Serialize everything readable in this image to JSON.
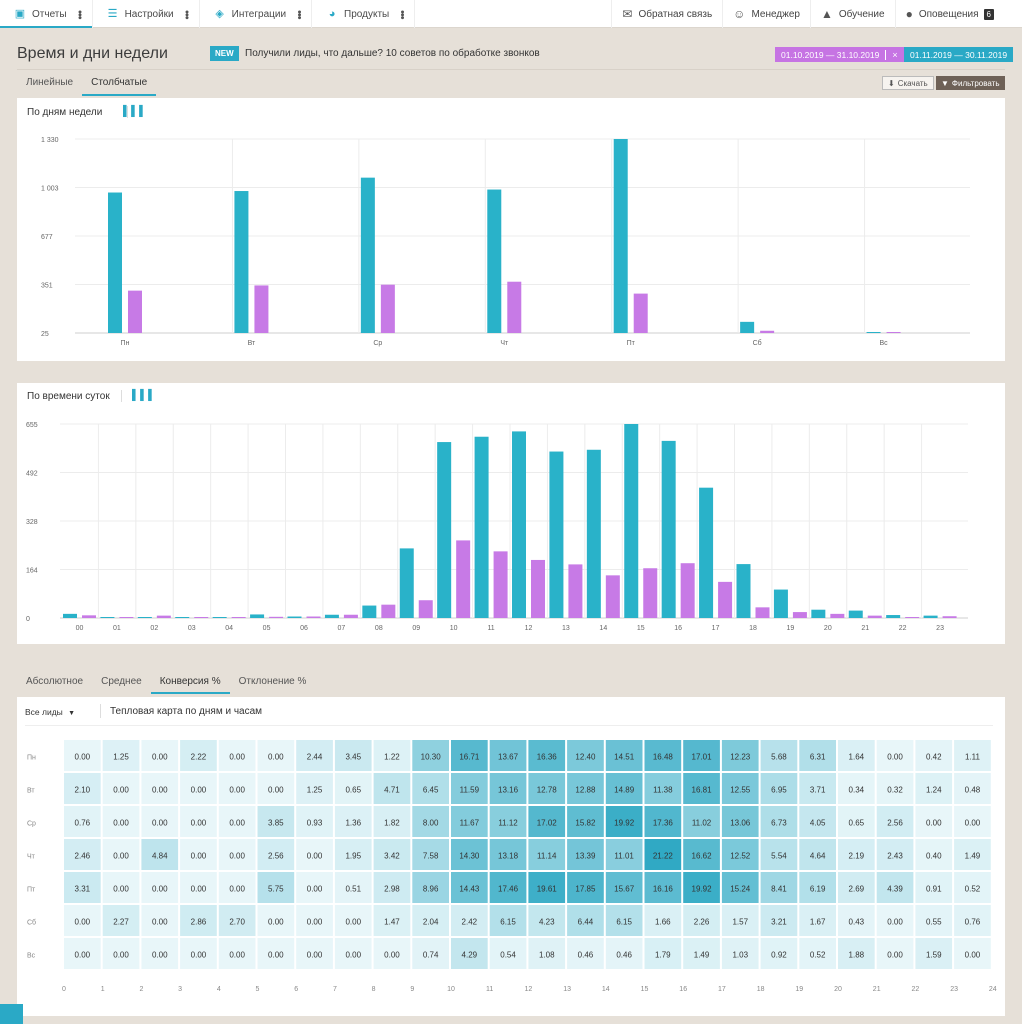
{
  "nav": {
    "items": [
      {
        "label": "Отчеты",
        "icon": "clipboard-icon"
      },
      {
        "label": "Настройки",
        "icon": "sliders-icon"
      },
      {
        "label": "Интеграции",
        "icon": "puzzle-icon"
      },
      {
        "label": "Продукты",
        "icon": "pie-icon"
      }
    ],
    "right": [
      {
        "label": "Обратная связь",
        "icon": "feedback-icon"
      },
      {
        "label": "Менеджер",
        "icon": "headset-icon"
      },
      {
        "label": "Обучение",
        "icon": "graduation-cap-icon"
      },
      {
        "label": "Оповещения",
        "icon": "bell-icon",
        "badge": "6"
      }
    ]
  },
  "header": {
    "title": "Время и дни недели",
    "new_badge": "NEW",
    "promo": "Получили лиды, что дальше? 10 советов по обработке звонков",
    "period1": "01.10.2019  —  31.10.2019",
    "period1_close": "×",
    "period2": "01.11.2019  —  30.11.2019"
  },
  "view_tabs": [
    "Линейные",
    "Столбчатые"
  ],
  "actions": {
    "download": "Скачать",
    "filter": "Фильтровать"
  },
  "panels": {
    "weekday_title": "По дням недели",
    "hour_title": "По времени суток"
  },
  "metric_tabs": [
    "Абсолютное",
    "Среднее",
    "Конверсия %",
    "Отклонение %"
  ],
  "heatmap": {
    "filter_label": "Все лиды",
    "title": "Тепловая карта по дням и часам"
  },
  "colors": {
    "series1": "#29b2c9",
    "series2": "#c77ae6",
    "accent": "#2aa9c6"
  },
  "chart_data": [
    {
      "type": "bar",
      "categories": [
        "Пн",
        "Вт",
        "Ср",
        "Чт",
        "Пт",
        "Сб",
        "Вс"
      ],
      "y_ticks": [
        "1 330",
        "1 003",
        "677",
        "351",
        "25"
      ],
      "ylim": [
        25,
        1330
      ],
      "series": [
        {
          "values": [
            970,
            980,
            1070,
            990,
            1330,
            100,
            30
          ]
        },
        {
          "values": [
            310,
            345,
            350,
            370,
            290,
            40,
            20
          ]
        }
      ]
    },
    {
      "type": "bar",
      "categories": [
        "00",
        "01",
        "02",
        "03",
        "04",
        "05",
        "06",
        "07",
        "08",
        "09",
        "10",
        "11",
        "12",
        "13",
        "14",
        "15",
        "16",
        "17",
        "18",
        "19",
        "20",
        "21",
        "22",
        "23"
      ],
      "y_ticks": [
        "655",
        "492",
        "328",
        "164",
        "0"
      ],
      "ylim": [
        0,
        655
      ],
      "series": [
        {
          "values": [
            14,
            3,
            3,
            1,
            1,
            12,
            5,
            11,
            42,
            235,
            594,
            612,
            630,
            562,
            568,
            655,
            598,
            440,
            182,
            96,
            28,
            25,
            10,
            8
          ]
        },
        {
          "values": [
            9,
            2,
            8,
            3,
            3,
            4,
            5,
            11,
            45,
            60,
            262,
            225,
            196,
            181,
            144,
            168,
            185,
            122,
            36,
            20,
            14,
            8,
            3,
            6
          ]
        }
      ]
    },
    {
      "type": "heatmap",
      "rows": [
        "Пн",
        "Вт",
        "Ср",
        "Чт",
        "Пт",
        "Сб",
        "Вс"
      ],
      "x_ticks": [
        "0",
        "1",
        "2",
        "3",
        "4",
        "5",
        "6",
        "7",
        "8",
        "9",
        "10",
        "11",
        "12",
        "13",
        "14",
        "15",
        "16",
        "17",
        "18",
        "19",
        "20",
        "21",
        "22",
        "23",
        "24"
      ],
      "values": [
        [
          "0.00",
          "1.25",
          "0.00",
          "2.22",
          "0.00",
          "0.00",
          "2.44",
          "3.45",
          "1.22",
          "10.30",
          "16.71",
          "13.67",
          "16.36",
          "12.40",
          "14.51",
          "16.48",
          "17.01",
          "12.23",
          "5.68",
          "6.31",
          "1.64",
          "0.00",
          "0.42",
          "1.11"
        ],
        [
          "2.10",
          "0.00",
          "0.00",
          "0.00",
          "0.00",
          "0.00",
          "1.25",
          "0.65",
          "4.71",
          "6.45",
          "11.59",
          "13.16",
          "12.78",
          "12.88",
          "14.89",
          "11.38",
          "16.81",
          "12.55",
          "6.95",
          "3.71",
          "0.34",
          "0.32",
          "1.24",
          "0.48"
        ],
        [
          "0.76",
          "0.00",
          "0.00",
          "0.00",
          "0.00",
          "3.85",
          "0.93",
          "1.36",
          "1.82",
          "8.00",
          "11.67",
          "11.12",
          "17.02",
          "15.82",
          "19.92",
          "17.36",
          "11.02",
          "13.06",
          "6.73",
          "4.05",
          "0.65",
          "2.56",
          "0.00",
          "0.00"
        ],
        [
          "2.46",
          "0.00",
          "4.84",
          "0.00",
          "0.00",
          "2.56",
          "0.00",
          "1.95",
          "3.42",
          "7.58",
          "14.30",
          "13.18",
          "11.14",
          "13.39",
          "11.01",
          "21.22",
          "16.62",
          "12.52",
          "5.54",
          "4.64",
          "2.19",
          "2.43",
          "0.40",
          "1.49"
        ],
        [
          "3.31",
          "0.00",
          "0.00",
          "0.00",
          "0.00",
          "5.75",
          "0.00",
          "0.51",
          "2.98",
          "8.96",
          "14.43",
          "17.46",
          "19.61",
          "17.85",
          "15.67",
          "16.16",
          "19.92",
          "15.24",
          "8.41",
          "6.19",
          "2.69",
          "4.39",
          "0.91",
          "0.52"
        ],
        [
          "0.00",
          "2.27",
          "0.00",
          "2.86",
          "2.70",
          "0.00",
          "0.00",
          "0.00",
          "1.47",
          "2.04",
          "2.42",
          "6.15",
          "4.23",
          "6.44",
          "6.15",
          "1.66",
          "2.26",
          "1.57",
          "3.21",
          "1.67",
          "0.43",
          "0.00",
          "0.55",
          "0.76"
        ],
        [
          "0.00",
          "0.00",
          "0.00",
          "0.00",
          "0.00",
          "0.00",
          "0.00",
          "0.00",
          "0.00",
          "0.74",
          "4.29",
          "0.54",
          "1.08",
          "0.46",
          "0.46",
          "1.79",
          "1.49",
          "1.03",
          "0.92",
          "0.52",
          "1.88",
          "0.00",
          "1.59",
          "0.00"
        ]
      ]
    }
  ]
}
